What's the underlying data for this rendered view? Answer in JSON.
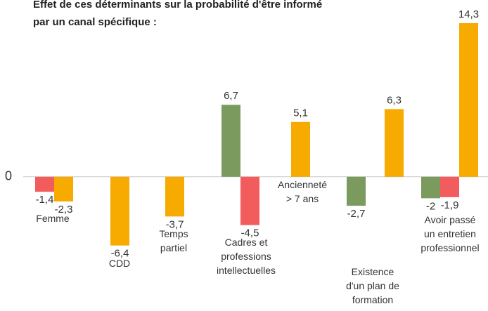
{
  "chart_data": {
    "type": "bar",
    "title": "Effet de ces déterminants sur la probabilité d'être informé\npar un canal spécifique :",
    "categories": [
      "Femme",
      "CDD",
      "Temps\npartiel",
      "Cadres et\nprofessions\nintellectuelles",
      "Ancienneté\n> 7 ans",
      "Existence\nd'un plan de\nformation",
      "Avoir passé\nun entretien\nprofessionnel"
    ],
    "series": [
      {
        "color": "#7a9a5e",
        "values": [
          null,
          null,
          null,
          6.7,
          null,
          -2.7,
          -2
        ],
        "value_labels": [
          null,
          null,
          null,
          "6,7",
          null,
          "-2,7",
          "-2"
        ]
      },
      {
        "color": "#f25c5c",
        "values": [
          -1.4,
          null,
          null,
          -4.5,
          null,
          null,
          -1.9
        ],
        "value_labels": [
          "-1,4",
          null,
          null,
          "-4,5",
          null,
          null,
          "-1,9"
        ]
      },
      {
        "color": "#f7aa00",
        "values": [
          -2.3,
          -6.4,
          -3.7,
          null,
          5.1,
          6.3,
          14.3
        ],
        "value_labels": [
          "-2,3",
          "-6,4",
          "-3,7",
          null,
          "5,1",
          "6,3",
          "14,3"
        ]
      }
    ],
    "ylim": [
      -12.5,
      16
    ],
    "yticks": [
      0
    ],
    "grid": true
  }
}
